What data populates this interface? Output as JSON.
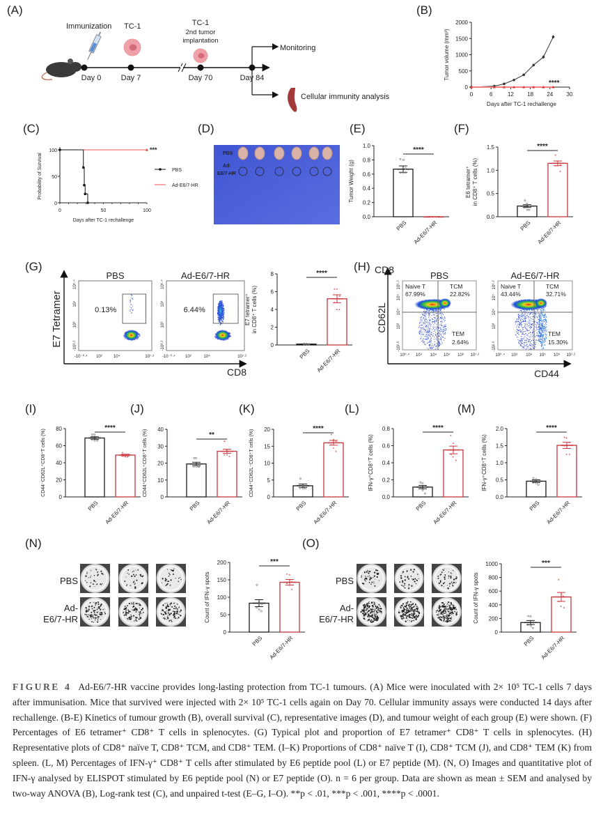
{
  "panel_letters": {
    "A": "(A)",
    "B": "(B)",
    "C": "(C)",
    "D": "(D)",
    "E": "(E)",
    "F": "(F)",
    "G": "(G)",
    "H": "(H)",
    "I": "(I)",
    "J": "(J)",
    "K": "(K)",
    "L": "(L)",
    "M": "(M)",
    "N": "(N)",
    "O": "(O)"
  },
  "timeline": {
    "immunization": "Immunization",
    "tc1_first": "TC-1",
    "tc1_second": "TC-1",
    "second_line1": "2nd tumor",
    "second_line2": "implantation",
    "days": [
      "Day 0",
      "Day 7",
      "Day 70",
      "Day 84"
    ],
    "monitoring": "Monitoring",
    "cellular": "Cellular immunity analysis"
  },
  "photo": {
    "pbs": "PBS",
    "hr_line1": "Ad-",
    "hr_line2": "E6/7-HR",
    "colors": {
      "background": "#4a5fd8",
      "tumor": "#d9b3a8"
    }
  },
  "flow_g": {
    "titles": [
      "PBS",
      "Ad-E6/7-HR"
    ],
    "percents": [
      "0.13%",
      "6.44%"
    ],
    "y_axis": "E7 Tetramer",
    "x_axis": "CD8",
    "x_ticks": [
      "-10⁻⁰·⁴",
      "10²",
      "10⁴",
      "10⁷·²"
    ],
    "y_ticks": [
      "10⁵·⁴",
      "10⁴",
      "10³",
      "-10³·²"
    ]
  },
  "flow_h": {
    "titles": [
      "PBS",
      "Ad-E6/7-HR"
    ],
    "corner": "CD8",
    "y_axis": "CD62L",
    "x_axis": "CD44",
    "quadrants": [
      {
        "naive": "Naive T",
        "naive_pct": "67.99%",
        "tcm": "TCM",
        "tcm_pct": "22.82%",
        "tem": "TEM",
        "tem_pct": "2.64%"
      },
      {
        "naive": "Naive T",
        "naive_pct": "43.44%",
        "tcm": "TCM",
        "tcm_pct": "32.71%",
        "tem": "TEM",
        "tem_pct": "15.30%"
      }
    ],
    "x_ticks": [
      "10⁰·⁴",
      "10³",
      "10⁴",
      "10⁵",
      "10⁶",
      "10⁷·²"
    ],
    "y_ticks": [
      "10⁶·²",
      "10⁵",
      "10⁴",
      "10³",
      "-10²·⁸"
    ]
  },
  "elispot": {
    "N": {
      "row_pbs": "PBS",
      "row_hr1": "Ad-",
      "row_hr2": "E6/7-HR"
    },
    "O": {
      "row_pbs": "PBS",
      "row_hr1": "Ad-",
      "row_hr2": "E6/7-HR"
    }
  },
  "colors": {
    "pbs": "#1a1a1a",
    "vaccine": "#c8363c"
  },
  "chart_data": [
    {
      "id": "B",
      "type": "line",
      "xlabel": "Days after TC-1 rechallenge",
      "ylabel": "Tumor volume (mm³)",
      "xlim": [
        0,
        30
      ],
      "ylim": [
        0,
        2000
      ],
      "xticks": [
        "0",
        "6",
        "12",
        "18",
        "24",
        "30"
      ],
      "yticks": [
        "0",
        "500",
        "1000",
        "1500",
        "2000"
      ],
      "significance": "****",
      "series": [
        {
          "group": "PBS",
          "x": [
            0,
            7,
            10,
            13,
            16,
            19,
            22,
            25
          ],
          "y": [
            0,
            30,
            100,
            220,
            380,
            680,
            930,
            1550
          ],
          "sem": [
            0,
            5,
            10,
            15,
            20,
            40,
            50,
            50
          ]
        },
        {
          "group": "Ad-E6/7-HR",
          "x": [
            0,
            7,
            10,
            13,
            16,
            19,
            22,
            25
          ],
          "y": [
            0,
            0,
            0,
            0,
            0,
            0,
            0,
            0
          ],
          "sem": [
            0,
            0,
            0,
            0,
            0,
            0,
            0,
            0
          ]
        }
      ]
    },
    {
      "id": "C",
      "type": "line",
      "xlabel": "Days after TC-1 rechallenge",
      "ylabel": "Probability of Survival",
      "xlim": [
        0,
        100
      ],
      "ylim": [
        0,
        100
      ],
      "xticks": [
        "0",
        "50",
        "100"
      ],
      "yticks": [
        "0",
        "50",
        "100"
      ],
      "significance": "***",
      "legend": [
        "PBS",
        "Ad-E6/7-HR"
      ],
      "legend_position": "right",
      "series": [
        {
          "name": "PBS",
          "x": [
            0,
            27,
            28,
            29,
            32
          ],
          "y": [
            100,
            66.7,
            33.3,
            16.7,
            0
          ]
        },
        {
          "name": "Ad-E6/7-HR",
          "x": [
            0,
            100
          ],
          "y": [
            100,
            100
          ]
        }
      ]
    },
    {
      "id": "E",
      "type": "bar",
      "categories": [
        "PBS",
        "Ad-E6/7-HR"
      ],
      "ylabel": [
        "Tumor Weight (g)"
      ],
      "ylim": [
        0,
        1.0
      ],
      "yticks": [
        "0.0",
        "0.2",
        "0.4",
        "0.6",
        "0.8",
        "1.0"
      ],
      "significance": "****",
      "values": [
        0.67,
        0.0
      ],
      "sem": [
        0.045,
        0.0
      ],
      "points": [
        [
          0.81,
          0.8,
          0.68,
          0.62,
          0.62,
          0.62
        ],
        [
          0,
          0,
          0,
          0,
          0,
          0
        ]
      ]
    },
    {
      "id": "F",
      "type": "bar",
      "categories": [
        "PBS",
        "Ad-E6/7-HR"
      ],
      "ylabel": [
        "E6 tetramer⁺",
        "in CD8⁺ T cells (%)"
      ],
      "ylim": [
        0,
        1.5
      ],
      "yticks": [
        "0.0",
        "0.5",
        "1.0",
        "1.5"
      ],
      "significance": "****",
      "values": [
        0.23,
        1.15
      ],
      "sem": [
        0.03,
        0.05
      ],
      "points": [
        [
          0.35,
          0.28,
          0.22,
          0.2,
          0.15,
          0.15
        ],
        [
          1.33,
          1.2,
          1.12,
          1.1,
          1.1,
          0.98
        ]
      ]
    },
    {
      "id": "G",
      "type": "bar",
      "categories": [
        "PBS",
        "Ad-E6/7-HR"
      ],
      "ylabel": [
        "E7 tetramer⁺",
        "in CD8⁺ T cells (%)"
      ],
      "ylim": [
        0,
        8
      ],
      "yticks": [
        "0",
        "2",
        "4",
        "6",
        "8"
      ],
      "significance": "****",
      "values": [
        0.1,
        5.2
      ],
      "sem": [
        0.02,
        0.45
      ],
      "points": [
        [
          0.15,
          0.12,
          0.1,
          0.08,
          0.08,
          0.06
        ],
        [
          6.3,
          6.3,
          5.5,
          4.8,
          4.0,
          4.0
        ]
      ]
    },
    {
      "id": "I",
      "type": "bar",
      "categories": [
        "PBS",
        "Ad-E6/7-HR"
      ],
      "ylabel": [
        "CD44⁻CD62L⁺CD8⁺T cells (%)"
      ],
      "ylim": [
        0,
        80
      ],
      "yticks": [
        "0",
        "20",
        "40",
        "60",
        "80"
      ],
      "significance": "****",
      "values": [
        69,
        49
      ],
      "sem": [
        1.5,
        1
      ],
      "points": [
        [
          73,
          73,
          70,
          67,
          66,
          66
        ],
        [
          52,
          50,
          49,
          48,
          47,
          47
        ]
      ]
    },
    {
      "id": "J",
      "type": "bar",
      "categories": [
        "PBS",
        "Ad-E6/7-HR"
      ],
      "ylabel": [
        "CD44⁺CD62L⁺CD8⁺T cells (%)"
      ],
      "ylim": [
        0,
        40
      ],
      "yticks": [
        "0",
        "10",
        "20",
        "30",
        "40"
      ],
      "significance": "**",
      "values": [
        19.5,
        27
      ],
      "sem": [
        1,
        1.2
      ],
      "points": [
        [
          23,
          23,
          18,
          18,
          18,
          18
        ],
        [
          33,
          28,
          27,
          25,
          25,
          24
        ]
      ]
    },
    {
      "id": "K",
      "type": "bar",
      "categories": [
        "PBS",
        "Ad-E6/7-HR"
      ],
      "ylabel": [
        "CD44⁺CD62L⁻CD8⁺T cells (%)"
      ],
      "ylim": [
        0,
        20
      ],
      "yticks": [
        "0",
        "5",
        "10",
        "15",
        "20"
      ],
      "significance": "****",
      "values": [
        3.3,
        16
      ],
      "sem": [
        0.5,
        0.7
      ],
      "points": [
        [
          5.4,
          3.3,
          3,
          2.6,
          2.5,
          2.5
        ],
        [
          18.5,
          17,
          16.5,
          15.5,
          14.5,
          13.5
        ]
      ]
    },
    {
      "id": "L",
      "type": "bar",
      "categories": [
        "PBS",
        "Ad-E6/7-HR"
      ],
      "ylabel": [
        "IFN-γ⁺CD8⁺T cells (%)"
      ],
      "ylim": [
        0,
        0.8
      ],
      "yticks": [
        "0.0",
        "0.2",
        "0.4",
        "0.6",
        "0.8"
      ],
      "significance": "****",
      "values": [
        0.115,
        0.55
      ],
      "sem": [
        0.02,
        0.045
      ],
      "points": [
        [
          0.17,
          0.16,
          0.12,
          0.1,
          0.08,
          0.04
        ],
        [
          0.72,
          0.63,
          0.55,
          0.5,
          0.47,
          0.43
        ]
      ]
    },
    {
      "id": "M",
      "type": "bar",
      "categories": [
        "PBS",
        "Ad-E6/7-HR"
      ],
      "ylabel": [
        "IFN-γ⁺CD8⁺T cells (%)"
      ],
      "ylim": [
        0,
        2.0
      ],
      "yticks": [
        "0.0",
        "0.5",
        "1.0",
        "1.5",
        "2.0"
      ],
      "significance": "****",
      "values": [
        0.46,
        1.51
      ],
      "sem": [
        0.04,
        0.09
      ],
      "points": [
        [
          0.55,
          0.52,
          0.45,
          0.42,
          0.4,
          0.36
        ],
        [
          1.75,
          1.73,
          1.6,
          1.5,
          1.25,
          1.25
        ]
      ]
    },
    {
      "id": "N",
      "type": "bar",
      "categories": [
        "PBS",
        "Ad-E6/7-HR"
      ],
      "ylabel": [
        "Count of IFN-γ spots"
      ],
      "ylim": [
        0,
        200
      ],
      "yticks": [
        "0",
        "50",
        "100",
        "150",
        "200"
      ],
      "significance": "***",
      "values": [
        83,
        143
      ],
      "sem": [
        10,
        8
      ],
      "points": [
        [
          135,
          85,
          80,
          70,
          65,
          60
        ],
        [
          167,
          165,
          145,
          140,
          135,
          123
        ]
      ]
    },
    {
      "id": "O",
      "type": "bar",
      "categories": [
        "PBS",
        "Ad-E6/7-HR"
      ],
      "ylabel": [
        "Count of IFN-γ spots"
      ],
      "ylim": [
        0,
        1000
      ],
      "yticks": [
        "0",
        "200",
        "400",
        "600",
        "800",
        "1000"
      ],
      "significance": "***",
      "values": [
        140,
        515
      ],
      "sem": [
        30,
        65
      ],
      "points": [
        [
          235,
          230,
          140,
          110,
          90,
          60
        ],
        [
          770,
          560,
          530,
          450,
          380,
          360
        ]
      ]
    }
  ],
  "caption": {
    "label": "FIGURE 4",
    "text": "Ad-E6/7-HR vaccine provides long-lasting protection from TC-1 tumours. (A) Mice were inoculated with 2× 10⁵ TC-1 cells 7 days after immunisation. Mice that survived were injected with 2× 10⁵ TC-1 cells again on Day 70. Cellular immunity assays were conducted 14 days after rechallenge. (B-E) Kinetics of tumour growth (B), overall survival (C), representative images (D), and tumour weight of each group (E) were shown. (F) Percentages of E6 tetramer⁺ CD8⁺ T cells in splenocytes. (G) Typical plot and proportion of E7 tetramer⁺ CD8⁺ T cells in splenocytes. (H) Representative plots of CD8⁺ naïve T, CD8⁺ TCM, and CD8⁺ TEM. (I–K) Proportions of CD8⁺ naïve T (I), CD8⁺ TCM (J), and CD8⁺ TEM (K) from spleen. (L, M) Percentages of IFN-γ⁺ CD8⁺ T cells after stimulated by E6 peptide pool (L) or E7 peptide (M). (N, O) Images and quantitative plot of IFN-γ analysed by ELISPOT stimulated by E6 peptide pool (N) or E7 peptide (O). n = 6 per group. Data are shown as mean ± SEM and analysed by two-way ANOVA (B), Log-rank test (C), and unpaired t-test (E–G, I–O). **p < .01, ***p < .001, ****p < .0001."
  }
}
